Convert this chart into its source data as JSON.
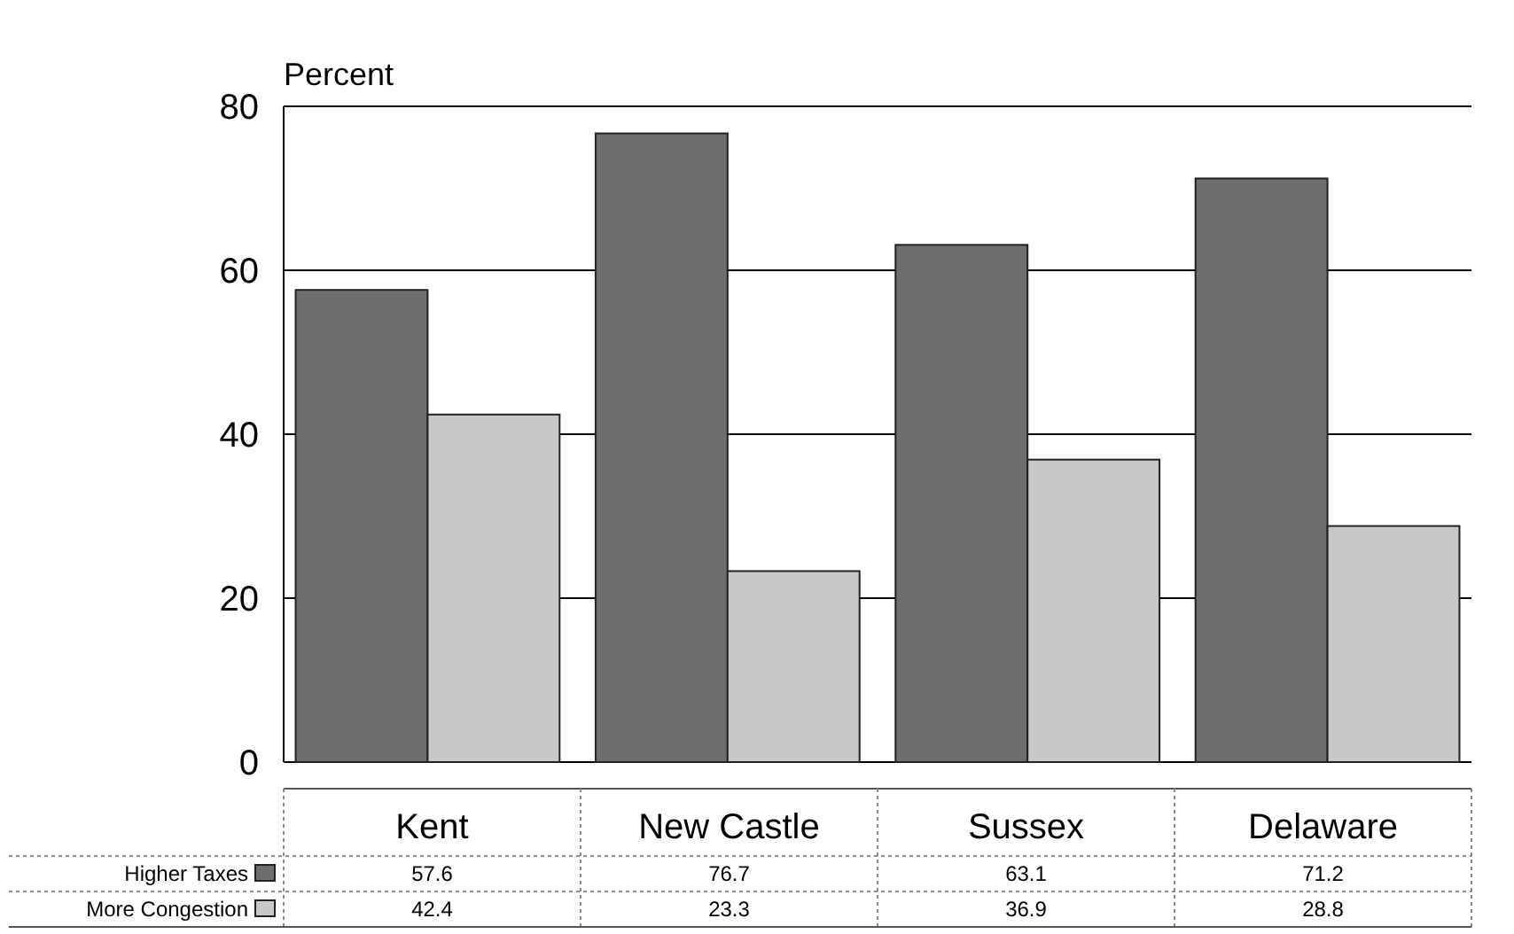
{
  "chart_data": {
    "type": "bar",
    "ylabel": "Percent",
    "categories": [
      "Kent",
      "New Castle",
      "Sussex",
      "Delaware"
    ],
    "series": [
      {
        "name": "Higher Taxes",
        "color": "#6e6e6e",
        "values": [
          57.6,
          76.7,
          63.1,
          71.2
        ]
      },
      {
        "name": "More Congestion",
        "color": "#c8c8c8",
        "values": [
          42.4,
          23.3,
          36.9,
          28.8
        ]
      }
    ],
    "ylim": [
      0,
      80
    ],
    "yticks": [
      0,
      20,
      40,
      60,
      80
    ],
    "grid": "y",
    "legend": "bottom left",
    "data_labels": true
  }
}
